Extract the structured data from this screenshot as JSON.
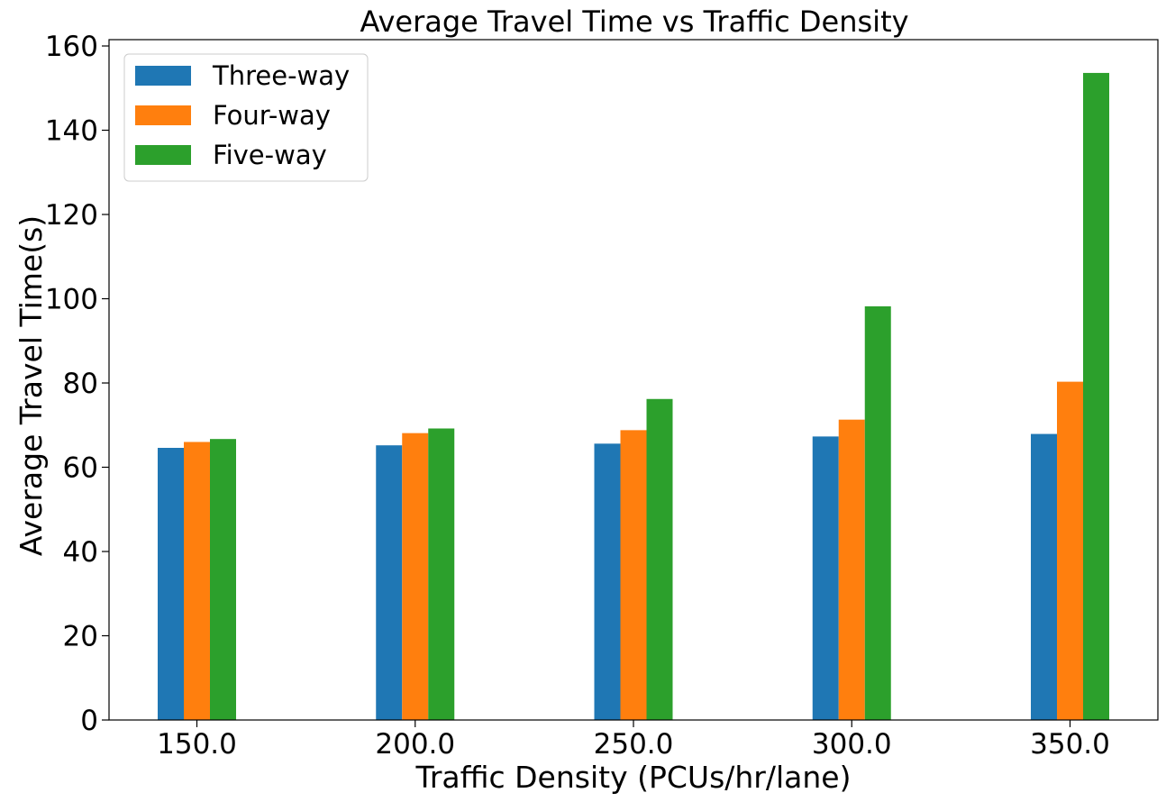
{
  "chart_data": {
    "type": "bar",
    "title": "Average Travel Time vs Traffic Density",
    "xlabel": "Traffic Density (PCUs/hr/lane)",
    "ylabel": "Average Travel Time(s)",
    "categories": [
      "150.0",
      "200.0",
      "250.0",
      "300.0",
      "350.0"
    ],
    "series": [
      {
        "name": "Three-way",
        "color": "#1f77b4",
        "values": [
          64.6,
          65.2,
          65.6,
          67.3,
          67.9
        ]
      },
      {
        "name": "Four-way",
        "color": "#ff7f0e",
        "values": [
          66.0,
          68.1,
          68.8,
          71.3,
          80.3
        ]
      },
      {
        "name": "Five-way",
        "color": "#2ca02c",
        "values": [
          66.7,
          69.2,
          76.2,
          98.2,
          153.6
        ]
      }
    ],
    "ylim": [
      0,
      161.5
    ],
    "yticks": [
      "0",
      "20",
      "40",
      "60",
      "80",
      "100",
      "120",
      "140",
      "160"
    ],
    "grid": false,
    "legend": "top-left"
  }
}
